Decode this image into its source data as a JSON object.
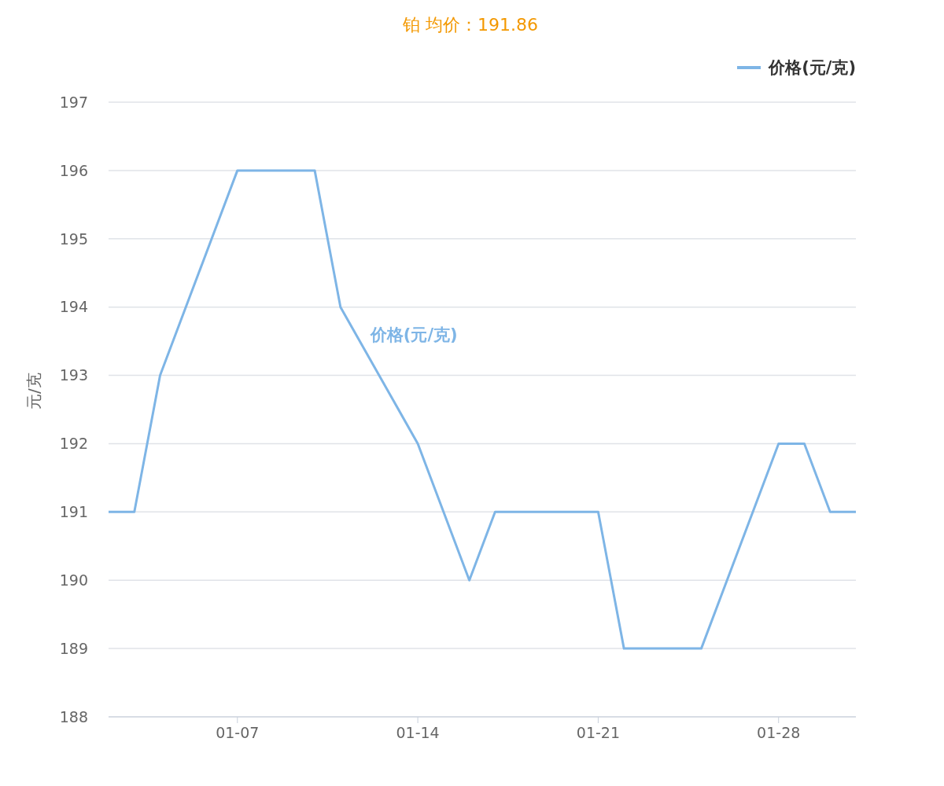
{
  "chart_data": {
    "type": "line",
    "title": "铂 均价：191.86",
    "ylabel": "元/克",
    "x": [
      "--01-02",
      "--01-03",
      "--01-04",
      "--01-07",
      "--01-10",
      "--01-11",
      "--01-14",
      "--01-16",
      "--01-17",
      "--01-21",
      "--01-22",
      "--01-25",
      "--01-28",
      "--01-29",
      "--01-30",
      "--01-31"
    ],
    "series": [
      {
        "name": "价格(元/克)",
        "color": "#7eb5e6",
        "values": [
          191,
          191,
          193,
          196,
          196,
          194,
          192,
          190,
          191,
          191,
          189,
          189,
          192,
          192,
          191,
          191
        ]
      }
    ],
    "xlim": [
      "--01-02",
      "--01-31"
    ],
    "xticks": [
      {
        "value": "--01-07",
        "label": "01-07"
      },
      {
        "value": "--01-14",
        "label": "01-14"
      },
      {
        "value": "--01-21",
        "label": "01-21"
      },
      {
        "value": "--01-28",
        "label": "01-28"
      }
    ],
    "ylim": [
      188,
      197
    ],
    "yticks": [
      188,
      189,
      190,
      191,
      192,
      193,
      194,
      195,
      196,
      197
    ],
    "grid": "y",
    "legend": "top right",
    "marker": "none",
    "line_style": "solid"
  }
}
